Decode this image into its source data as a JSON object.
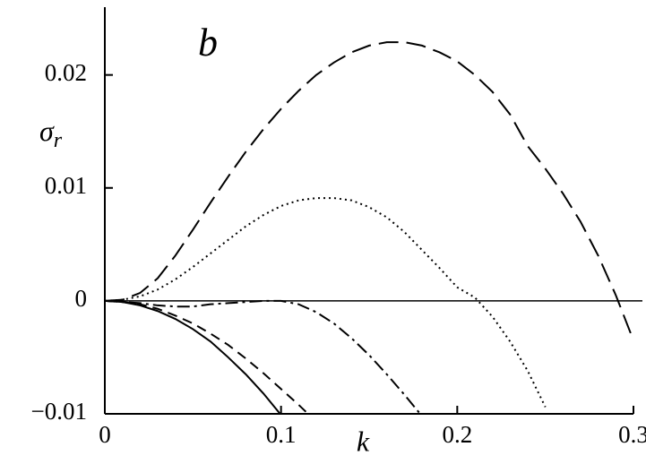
{
  "chart_data": {
    "type": "line",
    "annotation": "b",
    "xlabel": "k",
    "ylabel": "σ",
    "ylabel_sub": "r",
    "x": [
      0,
      0.01,
      0.02,
      0.03,
      0.04,
      0.05,
      0.06,
      0.07,
      0.08,
      0.09,
      0.1,
      0.11,
      0.12,
      0.13,
      0.14,
      0.15,
      0.16,
      0.17,
      0.18,
      0.19,
      0.2,
      0.21,
      0.22,
      0.23,
      0.24,
      0.25,
      0.26,
      0.27,
      0.28,
      0.29,
      0.3
    ],
    "series": [
      {
        "color": "#000000",
        "dash": "long-dash",
        "values": [
          0,
          0.0001,
          0.0007,
          0.002,
          0.004,
          0.0063,
          0.0087,
          0.011,
          0.0132,
          0.0152,
          0.017,
          0.0186,
          0.02,
          0.0211,
          0.022,
          0.0226,
          0.0229,
          0.0229,
          0.0226,
          0.022,
          0.0212,
          0.02,
          0.0185,
          0.0165,
          0.0137,
          0.0117,
          0.0095,
          0.007,
          0.004,
          0.0005,
          -0.0035
        ]
      },
      {
        "color": "#000000",
        "dash": "dotted",
        "values": [
          0,
          0.0001,
          0.0004,
          0.001,
          0.0019,
          0.003,
          0.0042,
          0.0054,
          0.0066,
          0.0076,
          0.0084,
          0.0089,
          0.0091,
          0.0091,
          0.0089,
          0.0083,
          0.0074,
          0.0061,
          0.0045,
          0.0029,
          0.0012,
          0.0003,
          -0.0014,
          -0.0036,
          -0.0062,
          -0.0094,
          null,
          null,
          null,
          null,
          null
        ]
      },
      {
        "color": "#000000",
        "dash": "dash-dot",
        "values": [
          0,
          -0.0001,
          -0.0002,
          -0.0004,
          -0.0005,
          -0.0005,
          -0.0003,
          -0.0002,
          -0.0001,
          0,
          0,
          -0.0003,
          -0.001,
          -0.002,
          -0.0033,
          -0.0048,
          -0.0065,
          -0.0083,
          -0.0102,
          null,
          null,
          null,
          null,
          null,
          null,
          null,
          null,
          null,
          null,
          null,
          null
        ]
      },
      {
        "color": "#000000",
        "dash": "short-dash",
        "values": [
          0,
          -0.0001,
          -0.0003,
          -0.0007,
          -0.0013,
          -0.002,
          -0.0029,
          -0.0039,
          -0.0051,
          -0.0064,
          -0.0078,
          -0.0092,
          -0.0107,
          null,
          null,
          null,
          null,
          null,
          null,
          null,
          null,
          null,
          null,
          null,
          null,
          null,
          null,
          null,
          null,
          null,
          null
        ]
      },
      {
        "color": "#000000",
        "dash": "solid",
        "values": [
          0,
          -0.0001,
          -0.0004,
          -0.0009,
          -0.0016,
          -0.0025,
          -0.0036,
          -0.005,
          -0.0065,
          -0.0082,
          -0.0101,
          null,
          null,
          null,
          null,
          null,
          null,
          null,
          null,
          null,
          null,
          null,
          null,
          null,
          null,
          null,
          null,
          null,
          null,
          null,
          null
        ]
      }
    ],
    "reference_line": 0,
    "xlim": [
      0,
      0.3
    ],
    "xticks": [
      0,
      0.1,
      0.2,
      0.3
    ],
    "ylim": [
      -0.01,
      0.026
    ],
    "yticks": [
      {
        "value": -0.01,
        "label": "−0.01"
      },
      0,
      0.01,
      0.02
    ]
  }
}
